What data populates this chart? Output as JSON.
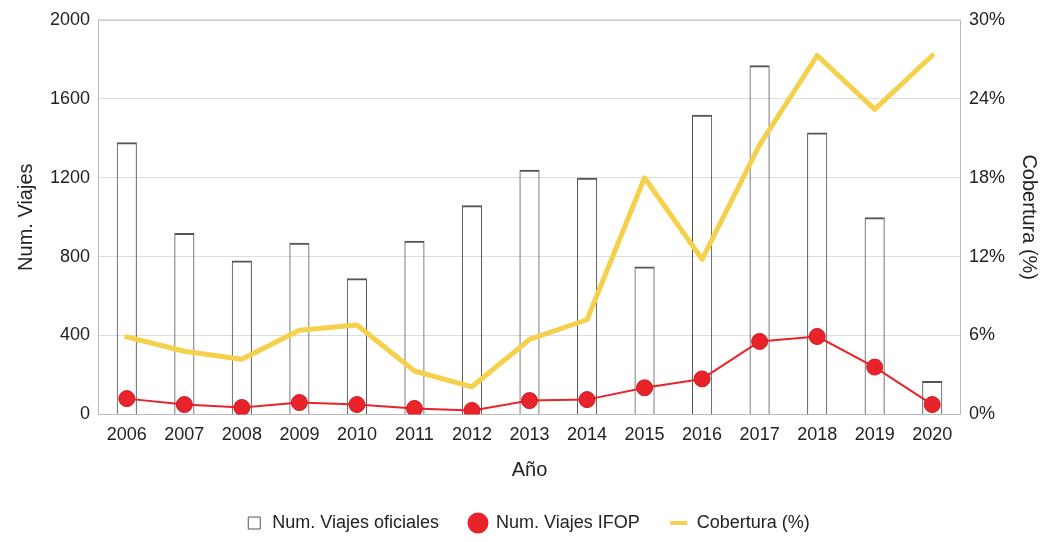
{
  "chart_data": {
    "type": "bar",
    "xlabel": "Año",
    "ylabel": "Num. Viajes",
    "y2label": "Cobertura (%)",
    "categories": [
      "2006",
      "2007",
      "2008",
      "2009",
      "2010",
      "2011",
      "2012",
      "2013",
      "2014",
      "2015",
      "2016",
      "2017",
      "2018",
      "2019",
      "2020"
    ],
    "series": [
      {
        "name": "Num. Viajes oficiales",
        "color": "#555555",
        "values": [
          1380,
          920,
          780,
          870,
          690,
          880,
          1060,
          1240,
          1200,
          750,
          1520,
          1770,
          1430,
          1000,
          170
        ]
      },
      {
        "name": "Num. Viajes IFOP",
        "type": "line",
        "color": "#e8232a",
        "marker": "circle",
        "values": [
          80,
          50,
          35,
          60,
          50,
          30,
          20,
          70,
          75,
          135,
          180,
          370,
          395,
          240,
          50
        ]
      },
      {
        "name": "Cobertura (%)",
        "type": "line",
        "axis": "y2",
        "color": "#f5d04a",
        "marker": "none",
        "values": [
          5.9,
          4.8,
          4.2,
          6.4,
          6.8,
          3.3,
          2.1,
          5.7,
          7.2,
          18.0,
          11.8,
          20.5,
          27.3,
          23.2,
          27.3
        ]
      }
    ],
    "ylim": [
      0,
      2000
    ],
    "yticks": [
      0,
      400,
      800,
      1200,
      1600,
      2000
    ],
    "y2lim": [
      0,
      30
    ],
    "y2ticks": [
      {
        "value": 0,
        "label": "0%"
      },
      {
        "value": 6,
        "label": "6%"
      },
      {
        "value": 12,
        "label": "12%"
      },
      {
        "value": 18,
        "label": "18%"
      },
      {
        "value": 24,
        "label": "24%"
      },
      {
        "value": 30,
        "label": "30%"
      }
    ],
    "grid": "y",
    "legend": "bottom"
  }
}
